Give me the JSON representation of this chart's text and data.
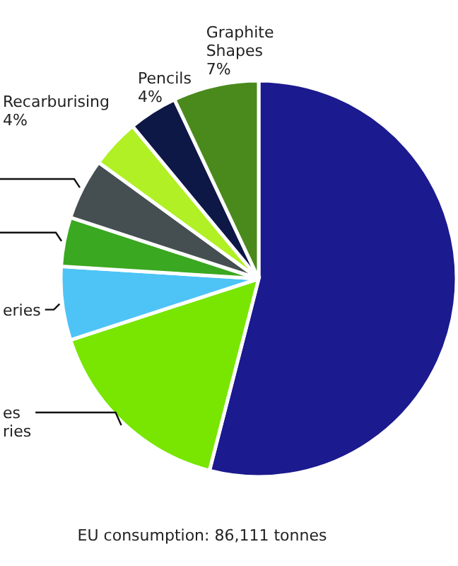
{
  "chart_data": {
    "type": "pie",
    "categories": [
      null,
      "es ries",
      "eries",
      null,
      null,
      "Recarburising",
      "Pencils",
      "Graphite Shapes"
    ],
    "values": [
      54,
      16,
      6,
      4,
      5,
      4,
      4,
      7
    ],
    "colors": [
      "#1b1a8e",
      "#78e600",
      "#4dc4f5",
      "#3aa820",
      "#454f52",
      "#b0f024",
      "#0e1846",
      "#4a8a1c"
    ],
    "value_labels": [
      null,
      null,
      null,
      null,
      null,
      "4%",
      "4%",
      "7%"
    ],
    "annotations": [
      "EU consumption: 86,111 tonnes"
    ]
  }
}
